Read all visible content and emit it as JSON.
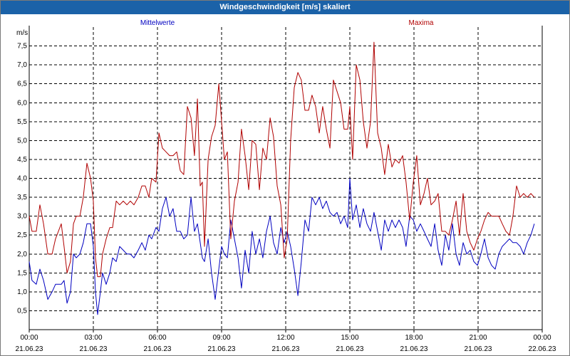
{
  "window": {
    "title": "Windgeschwindigkeit [m/s] skaliert"
  },
  "chart_data": {
    "type": "line",
    "title": "Windgeschwindigkeit [m/s] skaliert",
    "ylabel": "m/s",
    "ylim": [
      0,
      8
    ],
    "yticks": [
      "0,5",
      "1,0",
      "1,5",
      "2,0",
      "2,5",
      "3,0",
      "3,5",
      "4,0",
      "4,5",
      "5,0",
      "5,5",
      "6,0",
      "6,5",
      "7,0",
      "7,5"
    ],
    "ytick_values": [
      0.5,
      1,
      1.5,
      2,
      2.5,
      3,
      3.5,
      4,
      4.5,
      5,
      5.5,
      6,
      6.5,
      7,
      7.5
    ],
    "xlim": [
      0,
      24
    ],
    "xticks": [
      {
        "time": "00:00",
        "date": "21.06.23",
        "h": 0
      },
      {
        "time": "03:00",
        "date": "21.06.23",
        "h": 3
      },
      {
        "time": "06:00",
        "date": "21.06.23",
        "h": 6
      },
      {
        "time": "09:00",
        "date": "21.06.23",
        "h": 9
      },
      {
        "time": "12:00",
        "date": "21.06.23",
        "h": 12
      },
      {
        "time": "15:00",
        "date": "21.06.23",
        "h": 15
      },
      {
        "time": "18:00",
        "date": "21.06.23",
        "h": 18
      },
      {
        "time": "21:00",
        "date": "21.06.23",
        "h": 21
      },
      {
        "time": "00:00",
        "date": "22.06.23",
        "h": 24
      }
    ],
    "grid": true,
    "series": [
      {
        "name": "Mittelwerte",
        "color": "#0000c0",
        "points": [
          [
            0,
            1.8
          ],
          [
            0.13,
            1.3
          ],
          [
            0.33,
            1.2
          ],
          [
            0.5,
            1.6
          ],
          [
            0.67,
            1.3
          ],
          [
            0.87,
            0.8
          ],
          [
            1.07,
            1.0
          ],
          [
            1.23,
            1.2
          ],
          [
            1.5,
            1.2
          ],
          [
            1.63,
            1.3
          ],
          [
            1.77,
            0.7
          ],
          [
            1.93,
            1.0
          ],
          [
            2.07,
            2.0
          ],
          [
            2.2,
            1.9
          ],
          [
            2.37,
            2.0
          ],
          [
            2.53,
            2.3
          ],
          [
            2.7,
            2.8
          ],
          [
            2.87,
            2.8
          ],
          [
            3.0,
            2.2
          ],
          [
            3.1,
            1.0
          ],
          [
            3.2,
            0.4
          ],
          [
            3.33,
            1.0
          ],
          [
            3.43,
            1.5
          ],
          [
            3.6,
            1.2
          ],
          [
            3.77,
            1.5
          ],
          [
            3.9,
            1.9
          ],
          [
            4.07,
            1.8
          ],
          [
            4.23,
            2.2
          ],
          [
            4.4,
            2.1
          ],
          [
            4.57,
            2.0
          ],
          [
            4.73,
            2.0
          ],
          [
            4.9,
            1.9
          ],
          [
            5.1,
            2.1
          ],
          [
            5.27,
            2.3
          ],
          [
            5.43,
            2.1
          ],
          [
            5.6,
            2.5
          ],
          [
            5.73,
            2.4
          ],
          [
            5.93,
            2.7
          ],
          [
            6.07,
            2.6
          ],
          [
            6.23,
            3.2
          ],
          [
            6.4,
            3.5
          ],
          [
            6.57,
            3.0
          ],
          [
            6.73,
            3.2
          ],
          [
            6.9,
            2.6
          ],
          [
            7.07,
            2.6
          ],
          [
            7.23,
            2.4
          ],
          [
            7.4,
            2.5
          ],
          [
            7.57,
            3.5
          ],
          [
            7.73,
            2.6
          ],
          [
            7.87,
            2.8
          ],
          [
            8.0,
            2.3
          ],
          [
            8.1,
            1.9
          ],
          [
            8.2,
            1.8
          ],
          [
            8.37,
            2.4
          ],
          [
            8.53,
            1.5
          ],
          [
            8.7,
            0.8
          ],
          [
            8.87,
            1.6
          ],
          [
            9.0,
            2.2
          ],
          [
            9.13,
            2.0
          ],
          [
            9.27,
            1.9
          ],
          [
            9.43,
            2.9
          ],
          [
            9.6,
            2.4
          ],
          [
            9.77,
            1.9
          ],
          [
            9.93,
            1.1
          ],
          [
            10.1,
            2.1
          ],
          [
            10.27,
            1.5
          ],
          [
            10.43,
            2.6
          ],
          [
            10.6,
            2.0
          ],
          [
            10.77,
            2.4
          ],
          [
            10.93,
            1.9
          ],
          [
            11.1,
            2.6
          ],
          [
            11.27,
            3.0
          ],
          [
            11.43,
            2.3
          ],
          [
            11.6,
            2.0
          ],
          [
            11.77,
            2.7
          ],
          [
            11.93,
            2.3
          ],
          [
            12.07,
            2.6
          ],
          [
            12.23,
            2.2
          ],
          [
            12.4,
            1.6
          ],
          [
            12.57,
            0.9
          ],
          [
            12.73,
            1.8
          ],
          [
            12.9,
            2.9
          ],
          [
            13.07,
            2.6
          ],
          [
            13.23,
            3.5
          ],
          [
            13.4,
            3.3
          ],
          [
            13.57,
            3.5
          ],
          [
            13.73,
            3.2
          ],
          [
            13.9,
            3.4
          ],
          [
            14.07,
            3.1
          ],
          [
            14.23,
            3.0
          ],
          [
            14.4,
            3.1
          ],
          [
            14.57,
            2.8
          ],
          [
            14.73,
            3.0
          ],
          [
            14.9,
            2.7
          ],
          [
            15.0,
            4.0
          ],
          [
            15.13,
            2.9
          ],
          [
            15.3,
            3.3
          ],
          [
            15.47,
            2.7
          ],
          [
            15.63,
            3.2
          ],
          [
            15.8,
            2.8
          ],
          [
            15.97,
            2.6
          ],
          [
            16.13,
            3.1
          ],
          [
            16.3,
            2.6
          ],
          [
            16.47,
            2.1
          ],
          [
            16.63,
            2.9
          ],
          [
            16.8,
            2.6
          ],
          [
            16.97,
            2.9
          ],
          [
            17.13,
            2.7
          ],
          [
            17.3,
            2.9
          ],
          [
            17.47,
            2.7
          ],
          [
            17.63,
            2.2
          ],
          [
            17.8,
            3.0
          ],
          [
            17.97,
            2.9
          ],
          [
            18.13,
            2.6
          ],
          [
            18.3,
            2.8
          ],
          [
            18.47,
            2.6
          ],
          [
            18.63,
            2.4
          ],
          [
            18.8,
            2.2
          ],
          [
            18.97,
            2.8
          ],
          [
            19.13,
            2.1
          ],
          [
            19.3,
            1.7
          ],
          [
            19.47,
            2.5
          ],
          [
            19.63,
            2.1
          ],
          [
            19.8,
            2.8
          ],
          [
            19.97,
            2.0
          ],
          [
            20.13,
            1.7
          ],
          [
            20.3,
            2.3
          ],
          [
            20.47,
            2.0
          ],
          [
            20.63,
            2.1
          ],
          [
            20.8,
            1.8
          ],
          [
            20.97,
            1.7
          ],
          [
            21.13,
            2.0
          ],
          [
            21.3,
            2.4
          ],
          [
            21.47,
            1.9
          ],
          [
            21.63,
            1.7
          ],
          [
            21.8,
            1.6
          ],
          [
            21.97,
            2.0
          ],
          [
            22.13,
            2.2
          ],
          [
            22.3,
            2.3
          ],
          [
            22.47,
            2.4
          ],
          [
            22.63,
            2.3
          ],
          [
            22.8,
            2.3
          ],
          [
            22.97,
            2.2
          ],
          [
            23.13,
            2.0
          ],
          [
            23.3,
            2.3
          ],
          [
            23.47,
            2.5
          ],
          [
            23.63,
            2.8
          ]
        ]
      },
      {
        "name": "Maxima",
        "color": "#b00000",
        "points": [
          [
            0,
            3.0
          ],
          [
            0.13,
            2.6
          ],
          [
            0.33,
            2.6
          ],
          [
            0.5,
            3.3
          ],
          [
            0.67,
            2.8
          ],
          [
            0.87,
            2.0
          ],
          [
            1.07,
            2.0
          ],
          [
            1.23,
            2.4
          ],
          [
            1.5,
            2.8
          ],
          [
            1.63,
            2.2
          ],
          [
            1.77,
            1.5
          ],
          [
            1.93,
            1.8
          ],
          [
            2.07,
            2.8
          ],
          [
            2.2,
            3.0
          ],
          [
            2.37,
            3.0
          ],
          [
            2.53,
            3.5
          ],
          [
            2.7,
            4.4
          ],
          [
            2.87,
            4.0
          ],
          [
            3.0,
            3.4
          ],
          [
            3.1,
            1.9
          ],
          [
            3.2,
            1.4
          ],
          [
            3.33,
            1.4
          ],
          [
            3.43,
            2.0
          ],
          [
            3.6,
            2.4
          ],
          [
            3.77,
            2.7
          ],
          [
            3.9,
            2.7
          ],
          [
            4.07,
            3.4
          ],
          [
            4.23,
            3.3
          ],
          [
            4.4,
            3.4
          ],
          [
            4.57,
            3.3
          ],
          [
            4.73,
            3.4
          ],
          [
            4.9,
            3.3
          ],
          [
            5.1,
            3.5
          ],
          [
            5.27,
            3.8
          ],
          [
            5.43,
            3.8
          ],
          [
            5.6,
            3.5
          ],
          [
            5.73,
            4.0
          ],
          [
            5.93,
            3.9
          ],
          [
            6.07,
            5.2
          ],
          [
            6.23,
            4.8
          ],
          [
            6.4,
            4.7
          ],
          [
            6.57,
            4.6
          ],
          [
            6.73,
            4.6
          ],
          [
            6.9,
            4.7
          ],
          [
            7.07,
            4.2
          ],
          [
            7.23,
            4.1
          ],
          [
            7.4,
            5.9
          ],
          [
            7.57,
            5.6
          ],
          [
            7.73,
            4.6
          ],
          [
            7.87,
            6.1
          ],
          [
            8.0,
            3.8
          ],
          [
            8.1,
            3.9
          ],
          [
            8.2,
            2.2
          ],
          [
            8.37,
            4.5
          ],
          [
            8.53,
            5.1
          ],
          [
            8.7,
            5.4
          ],
          [
            8.87,
            6.5
          ],
          [
            9.0,
            5.5
          ],
          [
            9.13,
            4.5
          ],
          [
            9.27,
            4.7
          ],
          [
            9.43,
            2.4
          ],
          [
            9.6,
            3.4
          ],
          [
            9.77,
            3.9
          ],
          [
            9.93,
            5.3
          ],
          [
            10.1,
            4.6
          ],
          [
            10.27,
            3.7
          ],
          [
            10.43,
            5.0
          ],
          [
            10.6,
            4.9
          ],
          [
            10.77,
            3.7
          ],
          [
            10.93,
            4.8
          ],
          [
            11.1,
            4.5
          ],
          [
            11.27,
            5.6
          ],
          [
            11.43,
            5.1
          ],
          [
            11.6,
            3.8
          ],
          [
            11.77,
            3.3
          ],
          [
            11.93,
            1.9
          ],
          [
            12.07,
            2.4
          ],
          [
            12.23,
            5.0
          ],
          [
            12.4,
            6.4
          ],
          [
            12.57,
            6.8
          ],
          [
            12.73,
            6.6
          ],
          [
            12.9,
            5.8
          ],
          [
            13.07,
            5.8
          ],
          [
            13.23,
            6.2
          ],
          [
            13.4,
            5.9
          ],
          [
            13.57,
            5.2
          ],
          [
            13.73,
            5.9
          ],
          [
            13.9,
            5.3
          ],
          [
            14.07,
            4.8
          ],
          [
            14.23,
            6.6
          ],
          [
            14.4,
            6.3
          ],
          [
            14.57,
            6.0
          ],
          [
            14.73,
            5.3
          ],
          [
            14.9,
            5.3
          ],
          [
            15.0,
            5.9
          ],
          [
            15.13,
            4.5
          ],
          [
            15.3,
            7.0
          ],
          [
            15.47,
            6.6
          ],
          [
            15.63,
            5.5
          ],
          [
            15.8,
            4.8
          ],
          [
            15.97,
            5.5
          ],
          [
            16.13,
            7.6
          ],
          [
            16.3,
            5.2
          ],
          [
            16.47,
            4.8
          ],
          [
            16.63,
            4.1
          ],
          [
            16.8,
            4.9
          ],
          [
            16.97,
            4.3
          ],
          [
            17.13,
            4.5
          ],
          [
            17.3,
            4.4
          ],
          [
            17.47,
            4.6
          ],
          [
            17.63,
            3.9
          ],
          [
            17.8,
            2.9
          ],
          [
            17.97,
            3.9
          ],
          [
            18.13,
            4.6
          ],
          [
            18.3,
            3.3
          ],
          [
            18.47,
            3.6
          ],
          [
            18.63,
            4.0
          ],
          [
            18.8,
            3.3
          ],
          [
            18.97,
            3.4
          ],
          [
            19.13,
            3.6
          ],
          [
            19.3,
            2.6
          ],
          [
            19.47,
            2.6
          ],
          [
            19.63,
            2.5
          ],
          [
            19.8,
            2.9
          ],
          [
            19.97,
            3.4
          ],
          [
            20.13,
            2.5
          ],
          [
            20.3,
            3.6
          ],
          [
            20.47,
            2.6
          ],
          [
            20.63,
            2.3
          ],
          [
            20.8,
            2.1
          ],
          [
            20.97,
            2.4
          ],
          [
            21.13,
            2.6
          ],
          [
            21.3,
            2.9
          ],
          [
            21.47,
            3.1
          ],
          [
            21.63,
            3.0
          ],
          [
            21.8,
            3.0
          ],
          [
            21.97,
            3.0
          ],
          [
            22.13,
            2.8
          ],
          [
            22.3,
            2.6
          ],
          [
            22.47,
            2.5
          ],
          [
            22.63,
            3.0
          ],
          [
            22.8,
            3.8
          ],
          [
            22.97,
            3.5
          ],
          [
            23.13,
            3.6
          ],
          [
            23.3,
            3.5
          ],
          [
            23.47,
            3.6
          ],
          [
            23.63,
            3.5
          ]
        ]
      }
    ]
  }
}
